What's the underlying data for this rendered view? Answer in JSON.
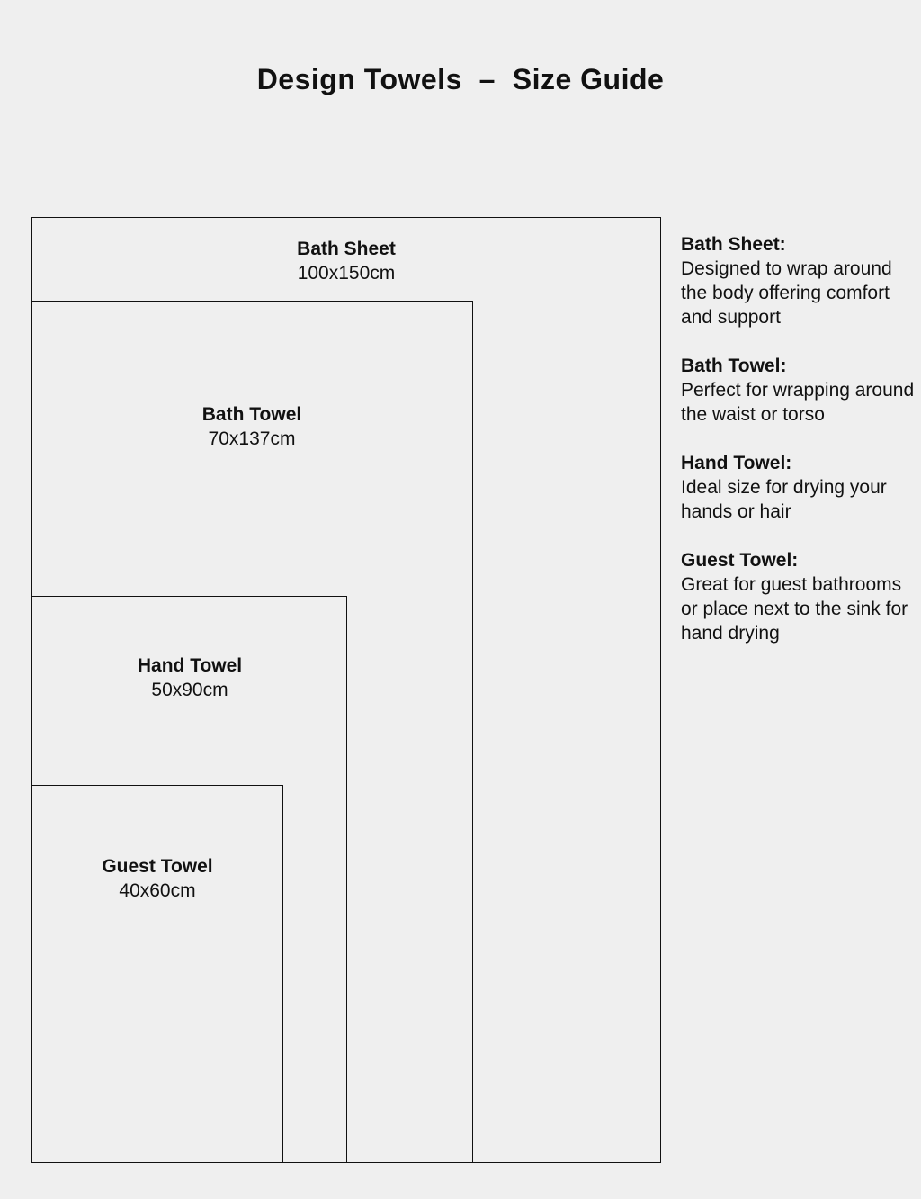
{
  "title": "Design Towels  –  Size Guide",
  "towels": [
    {
      "name": "Bath Sheet",
      "size": "100x150cm"
    },
    {
      "name": "Bath Towel",
      "size": "70x137cm"
    },
    {
      "name": "Hand Towel",
      "size": "50x90cm"
    },
    {
      "name": "Guest Towel",
      "size": "40x60cm"
    }
  ],
  "descriptions": [
    {
      "heading": "Bath Sheet:",
      "text": "Designed to wrap around the body offering comfort and support"
    },
    {
      "heading": "Bath Towel:",
      "text": "Perfect for wrapping around the waist or torso"
    },
    {
      "heading": "Hand Towel:",
      "text": "Ideal size for drying your hands or hair"
    },
    {
      "heading": "Guest Towel:",
      "text": "Great for guest bathrooms or place next to the sink for hand drying"
    }
  ]
}
